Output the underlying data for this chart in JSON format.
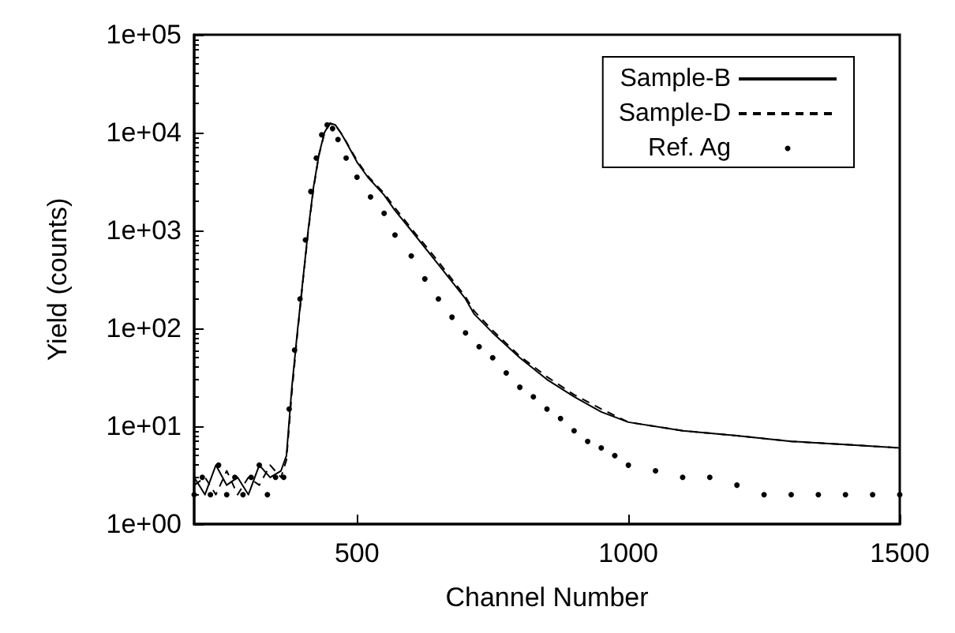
{
  "chart_data": {
    "type": "line",
    "xlabel": "Channel Number",
    "ylabel": "Yield (counts)",
    "log": "y",
    "grid": false,
    "legend": "top right",
    "xlim": [
      200,
      1500
    ],
    "xticks": [
      500,
      1000,
      1500
    ],
    "ylim": [
      1,
      100000
    ],
    "yticks": [
      {
        "value": 1,
        "label": "1e+00"
      },
      {
        "value": 10,
        "label": "1e+01"
      },
      {
        "value": 100,
        "label": "1e+02"
      },
      {
        "value": 1000,
        "label": "1e+03"
      },
      {
        "value": 10000,
        "label": "1e+04"
      },
      {
        "value": 100000,
        "label": "1e+05"
      }
    ],
    "series": [
      {
        "name": "Sample-B",
        "color": "#000000",
        "line_style": "solid",
        "x": [
          200,
          220,
          240,
          260,
          280,
          300,
          320,
          340,
          360,
          370,
          380,
          390,
          400,
          410,
          420,
          430,
          440,
          450,
          460,
          470,
          480,
          500,
          520,
          550,
          570,
          600,
          650,
          700,
          716,
          750,
          800,
          850,
          900,
          950,
          1000,
          1100,
          1200,
          1300,
          1400,
          1500
        ],
        "values": [
          3,
          2,
          4,
          2.5,
          3,
          2,
          4,
          3,
          3.5,
          5,
          25,
          90,
          300,
          1000,
          2800,
          6000,
          10000,
          12500,
          12000,
          10000,
          8000,
          5000,
          3500,
          2300,
          1600,
          1000,
          450,
          200,
          140,
          90,
          50,
          30,
          20,
          14,
          11,
          9,
          8,
          7,
          6.5,
          6
        ]
      },
      {
        "name": "Sample-D",
        "color": "#000000",
        "line_style": "dashed",
        "x": [
          200,
          220,
          240,
          260,
          280,
          300,
          320,
          340,
          360,
          370,
          380,
          390,
          400,
          410,
          420,
          430,
          440,
          450,
          460,
          470,
          480,
          500,
          520,
          550,
          570,
          600,
          650,
          700,
          716,
          750,
          800,
          850,
          900,
          950,
          1000,
          1100,
          1200,
          1300,
          1400,
          1500
        ],
        "values": [
          2.5,
          3,
          2,
          3.5,
          2,
          3,
          2.5,
          4,
          3,
          4.5,
          22,
          85,
          290,
          950,
          2700,
          5900,
          9800,
          12300,
          11800,
          10000,
          8100,
          5200,
          3600,
          2400,
          1700,
          1050,
          480,
          210,
          150,
          95,
          52,
          32,
          21,
          15,
          11,
          9,
          8,
          7,
          6.5,
          6
        ]
      },
      {
        "name": "Ref. Ag",
        "type": "scatter",
        "marker": "circle",
        "color": "#000000",
        "x": [
          200,
          215,
          230,
          245,
          260,
          275,
          290,
          305,
          320,
          335,
          350,
          365,
          375,
          385,
          395,
          405,
          415,
          425,
          435,
          445,
          455,
          465,
          480,
          500,
          525,
          550,
          570,
          600,
          625,
          650,
          675,
          700,
          725,
          750,
          775,
          800,
          825,
          850,
          875,
          900,
          925,
          950,
          975,
          1000,
          1050,
          1100,
          1150,
          1200,
          1250,
          1300,
          1350,
          1400,
          1450,
          1500
        ],
        "values": [
          2,
          3,
          2,
          4,
          2,
          3,
          2,
          3,
          4,
          2,
          3,
          3,
          15,
          60,
          200,
          800,
          2500,
          5500,
          9500,
          12000,
          11000,
          8500,
          5500,
          3500,
          2200,
          1500,
          900,
          550,
          320,
          200,
          130,
          90,
          65,
          50,
          35,
          25,
          20,
          15,
          12,
          9,
          7,
          6,
          5,
          4,
          3.5,
          3,
          3,
          2.5,
          2,
          2,
          2,
          2,
          2,
          2
        ]
      }
    ]
  }
}
